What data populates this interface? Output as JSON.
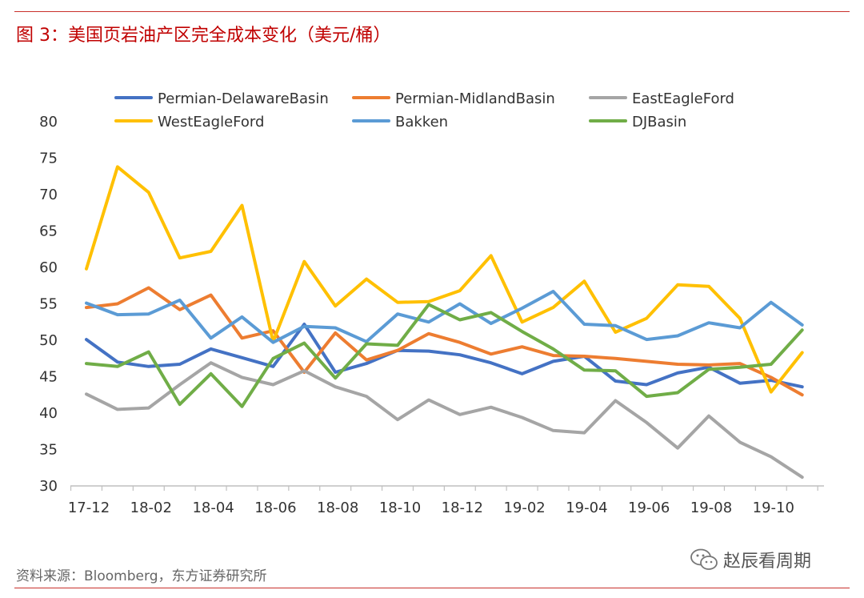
{
  "figure": {
    "title": "图 3：美国页岩油产区完全成本变化（美元/桶）",
    "source": "资料来源：Bloomberg，东方证券研究所",
    "watermark": "赵辰看周期",
    "watermark_icon": "wechat-icon"
  },
  "chart_data": {
    "type": "line",
    "title": "",
    "xlabel": "",
    "ylabel": "",
    "ylim": [
      30,
      80
    ],
    "yticks": [
      30,
      35,
      40,
      45,
      50,
      55,
      60,
      65,
      70,
      75,
      80
    ],
    "grid": false,
    "legend_position": "top",
    "x": [
      "17-12",
      "18-01",
      "18-02",
      "18-03",
      "18-04",
      "18-05",
      "18-06",
      "18-07",
      "18-08",
      "18-09",
      "18-10",
      "18-11",
      "18-12",
      "19-01",
      "19-02",
      "19-03",
      "19-04",
      "19-05",
      "19-06",
      "19-07",
      "19-08",
      "19-09",
      "19-10",
      "19-11"
    ],
    "x_tick_labels": [
      "17-12",
      "18-02",
      "18-04",
      "18-06",
      "18-08",
      "18-10",
      "18-12",
      "19-02",
      "19-04",
      "19-06",
      "19-08",
      "19-10"
    ],
    "series": [
      {
        "name": "Permian-DelawareBasin",
        "color": "#4472c4",
        "values": [
          50.1,
          47.0,
          46.4,
          46.7,
          48.8,
          47.6,
          46.4,
          52.2,
          45.6,
          46.8,
          48.6,
          48.5,
          48.0,
          46.9,
          45.4,
          47.1,
          47.8,
          44.4,
          43.9,
          45.5,
          46.3,
          44.1,
          44.5,
          43.6
        ]
      },
      {
        "name": "Permian-MidlandBasin",
        "color": "#ed7d31",
        "values": [
          54.5,
          55.0,
          57.2,
          54.2,
          56.2,
          50.3,
          51.3,
          45.6,
          51.0,
          47.3,
          48.6,
          50.9,
          49.7,
          48.1,
          49.1,
          47.9,
          47.8,
          47.5,
          47.1,
          46.7,
          46.6,
          46.8,
          44.9,
          42.5
        ]
      },
      {
        "name": "EastEagleFord",
        "color": "#a5a5a5",
        "values": [
          42.6,
          40.5,
          40.7,
          43.9,
          46.9,
          44.9,
          43.9,
          45.8,
          43.6,
          42.3,
          39.1,
          41.8,
          39.8,
          40.8,
          39.4,
          37.6,
          37.3,
          41.7,
          38.7,
          35.2,
          39.6,
          36.0,
          34.0,
          31.2
        ]
      },
      {
        "name": "WestEagleFord",
        "color": "#ffc000",
        "values": [
          59.8,
          73.8,
          70.3,
          61.3,
          62.2,
          68.5,
          49.8,
          60.8,
          54.7,
          58.4,
          55.2,
          55.3,
          56.8,
          61.6,
          52.5,
          54.5,
          58.1,
          51.1,
          53.0,
          57.6,
          57.4,
          53.0,
          42.9,
          48.3
        ]
      },
      {
        "name": "Bakken",
        "color": "#5b9bd5",
        "values": [
          55.1,
          53.5,
          53.6,
          55.5,
          50.3,
          53.2,
          49.7,
          51.9,
          51.7,
          49.8,
          53.6,
          52.5,
          55.0,
          52.3,
          54.4,
          56.7,
          52.2,
          52.0,
          50.1,
          50.6,
          52.4,
          51.7,
          55.2,
          52.1
        ]
      },
      {
        "name": "DJBasin",
        "color": "#70ad47",
        "values": [
          46.8,
          46.4,
          48.4,
          41.2,
          45.4,
          40.9,
          47.5,
          49.6,
          44.8,
          49.5,
          49.3,
          54.9,
          52.8,
          53.8,
          51.2,
          48.8,
          45.9,
          45.8,
          42.3,
          42.8,
          46.0,
          46.3,
          46.7,
          51.4
        ]
      }
    ]
  }
}
